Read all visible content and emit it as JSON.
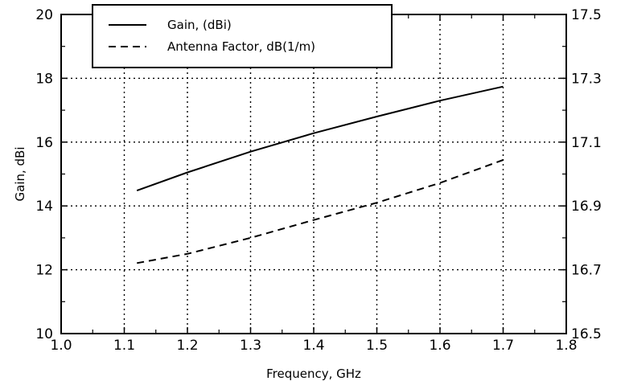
{
  "chart_data": {
    "type": "line",
    "xlabel": "Frequency, GHz",
    "ylabel": "Gain, dBi",
    "y2label": "",
    "xlim": [
      1.0,
      1.8
    ],
    "ylim": [
      10,
      20
    ],
    "y2lim": [
      16.5,
      17.5
    ],
    "x_ticks": [
      "1.0",
      "1.1",
      "1.2",
      "1.3",
      "1.4",
      "1.5",
      "1.6",
      "1.7",
      "1.8"
    ],
    "y_ticks": [
      "10",
      "12",
      "14",
      "16",
      "18",
      "20"
    ],
    "y2_ticks": [
      "16.5",
      "16.7",
      "16.9",
      "17.1",
      "17.3",
      "17.5"
    ],
    "grid": true,
    "legend_position": "top-left",
    "series": [
      {
        "name": "Gain, (dBi)",
        "style": "solid",
        "axis": "left",
        "x": [
          1.12,
          1.2,
          1.3,
          1.4,
          1.5,
          1.6,
          1.7
        ],
        "y": [
          14.48,
          15.05,
          15.7,
          16.28,
          16.8,
          17.3,
          17.74
        ]
      },
      {
        "name": "Antenna Factor, dB(1/m)",
        "style": "dashed",
        "axis": "right",
        "x": [
          1.12,
          1.2,
          1.3,
          1.4,
          1.5,
          1.6,
          1.7
        ],
        "y": [
          16.721,
          16.75,
          16.8,
          16.856,
          16.91,
          16.972,
          17.044
        ]
      }
    ]
  }
}
